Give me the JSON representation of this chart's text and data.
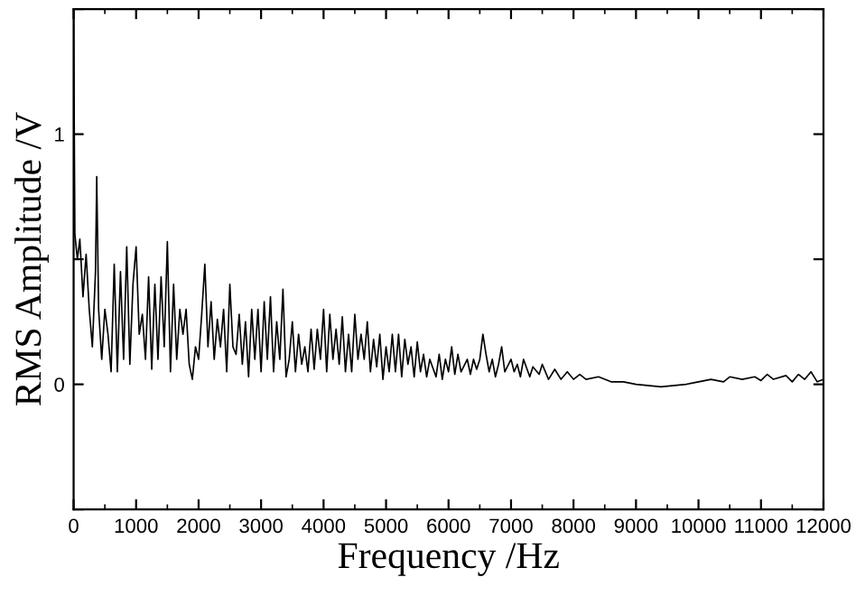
{
  "chart_data": {
    "type": "line",
    "xlabel": "Frequency /Hz",
    "ylabel": "RMS Amplitude /V",
    "xlim": [
      0,
      12000
    ],
    "xticks": [
      0,
      1000,
      2000,
      3000,
      4000,
      5000,
      6000,
      7000,
      8000,
      9000,
      10000,
      11000,
      12000
    ],
    "ylim": [
      -0.5,
      1.5
    ],
    "yticks": [
      {
        "value": -0.5,
        "label": null
      },
      0,
      {
        "value": 0.5,
        "label": null
      },
      1,
      {
        "value": 1.5,
        "label": null
      }
    ],
    "marker": "none",
    "line_style": "solid",
    "series": [
      {
        "color": "#000000",
        "x": [
          0,
          20,
          60,
          100,
          150,
          200,
          250,
          300,
          350,
          370,
          400,
          450,
          500,
          550,
          600,
          650,
          700,
          750,
          800,
          850,
          900,
          950,
          1000,
          1050,
          1100,
          1150,
          1200,
          1250,
          1300,
          1350,
          1400,
          1450,
          1500,
          1550,
          1600,
          1650,
          1700,
          1750,
          1800,
          1850,
          1900,
          1950,
          2000,
          2050,
          2100,
          2150,
          2200,
          2250,
          2300,
          2350,
          2400,
          2450,
          2500,
          2550,
          2600,
          2650,
          2700,
          2750,
          2800,
          2850,
          2900,
          2950,
          3000,
          3050,
          3100,
          3150,
          3200,
          3250,
          3300,
          3350,
          3400,
          3450,
          3500,
          3550,
          3600,
          3650,
          3700,
          3750,
          3800,
          3850,
          3900,
          3950,
          4000,
          4050,
          4100,
          4150,
          4200,
          4250,
          4300,
          4350,
          4400,
          4450,
          4500,
          4550,
          4600,
          4650,
          4700,
          4750,
          4800,
          4850,
          4900,
          4950,
          5000,
          5050,
          5100,
          5150,
          5200,
          5250,
          5300,
          5350,
          5400,
          5450,
          5500,
          5550,
          5600,
          5650,
          5700,
          5800,
          5850,
          5900,
          5950,
          6000,
          6050,
          6100,
          6150,
          6200,
          6300,
          6350,
          6400,
          6450,
          6500,
          6550,
          6600,
          6650,
          6700,
          6750,
          6800,
          6850,
          6900,
          7000,
          7050,
          7100,
          7150,
          7200,
          7300,
          7350,
          7450,
          7500,
          7600,
          7700,
          7800,
          7900,
          8000,
          8100,
          8200,
          8400,
          8600,
          8800,
          9000,
          9400,
          9800,
          10000,
          10200,
          10400,
          10500,
          10700,
          10900,
          11000,
          11100,
          11200,
          11400,
          11500,
          11600,
          11700,
          11800,
          11900,
          12000
        ],
        "values": [
          1.5,
          0.6,
          0.5,
          0.58,
          0.35,
          0.52,
          0.3,
          0.15,
          0.45,
          0.83,
          0.3,
          0.1,
          0.3,
          0.2,
          0.05,
          0.48,
          0.05,
          0.45,
          0.1,
          0.55,
          0.08,
          0.4,
          0.55,
          0.2,
          0.28,
          0.1,
          0.43,
          0.06,
          0.4,
          0.1,
          0.43,
          0.15,
          0.57,
          0.05,
          0.4,
          0.1,
          0.3,
          0.2,
          0.3,
          0.08,
          0.02,
          0.15,
          0.1,
          0.28,
          0.48,
          0.15,
          0.33,
          0.1,
          0.26,
          0.15,
          0.3,
          0.05,
          0.4,
          0.15,
          0.12,
          0.28,
          0.08,
          0.25,
          0.03,
          0.3,
          0.1,
          0.3,
          0.05,
          0.33,
          0.1,
          0.35,
          0.05,
          0.25,
          0.1,
          0.38,
          0.03,
          0.1,
          0.25,
          0.05,
          0.2,
          0.08,
          0.15,
          0.05,
          0.22,
          0.06,
          0.22,
          0.1,
          0.3,
          0.05,
          0.28,
          0.1,
          0.22,
          0.08,
          0.27,
          0.05,
          0.2,
          0.05,
          0.28,
          0.1,
          0.2,
          0.1,
          0.25,
          0.05,
          0.18,
          0.07,
          0.2,
          0.02,
          0.15,
          0.05,
          0.2,
          0.05,
          0.2,
          0.03,
          0.18,
          0.08,
          0.15,
          0.03,
          0.17,
          0.05,
          0.12,
          0.03,
          0.1,
          0.03,
          0.12,
          0.02,
          0.1,
          0.05,
          0.15,
          0.04,
          0.12,
          0.05,
          0.1,
          0.04,
          0.1,
          0.06,
          0.1,
          0.2,
          0.12,
          0.05,
          0.1,
          0.03,
          0.08,
          0.15,
          0.05,
          0.1,
          0.05,
          0.08,
          0.03,
          0.1,
          0.03,
          0.07,
          0.04,
          0.08,
          0.02,
          0.06,
          0.02,
          0.05,
          0.02,
          0.04,
          0.02,
          0.03,
          0.01,
          0.01,
          0.0,
          -0.01,
          0.0,
          0.01,
          0.02,
          0.01,
          0.03,
          0.02,
          0.03,
          0.015,
          0.04,
          0.02,
          0.035,
          0.01,
          0.04,
          0.02,
          0.05,
          0.01,
          0.02
        ]
      }
    ]
  }
}
